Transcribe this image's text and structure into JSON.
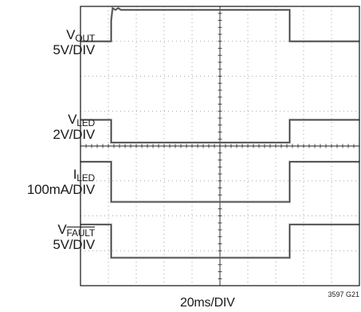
{
  "chart_data": {
    "type": "line",
    "title": "",
    "xlabel": "20ms/DIV",
    "figure_id": "3597 G21",
    "grid": true,
    "divisions": {
      "x": 10,
      "y": 8
    },
    "xlim": [
      0,
      10
    ],
    "ylim": [
      0,
      8
    ],
    "series": [
      {
        "name": "V_OUT",
        "scale": "5V/DIV",
        "x": [
          0,
          1.1,
          1.1,
          1.15,
          1.25,
          1.35,
          1.45,
          1.6,
          7.5,
          7.5,
          10
        ],
        "y": [
          7.0,
          7.0,
          7.6,
          7.95,
          7.9,
          7.95,
          7.9,
          7.9,
          7.9,
          7.0,
          7.0
        ]
      },
      {
        "name": "V_LED",
        "scale": "2V/DIV",
        "x": [
          0,
          1.1,
          1.1,
          7.5,
          7.5,
          10
        ],
        "y": [
          4.75,
          4.75,
          4.1,
          4.1,
          4.75,
          4.75
        ]
      },
      {
        "name": "I_LED",
        "scale": "100mA/DIV",
        "x": [
          0,
          1.1,
          1.1,
          7.5,
          7.5,
          10
        ],
        "y": [
          3.55,
          3.55,
          2.4,
          2.4,
          3.55,
          3.55
        ]
      },
      {
        "name": "V_FAULT",
        "scale": "5V/DIV",
        "x": [
          0,
          1.1,
          1.1,
          7.5,
          7.5,
          10
        ],
        "y": [
          1.75,
          1.75,
          0.8,
          0.8,
          1.75,
          1.75
        ]
      }
    ]
  },
  "labels": {
    "vout": {
      "main": "V",
      "sub": "OUT",
      "scale": "5V/DIV"
    },
    "vled": {
      "main": "V",
      "sub": "LED",
      "scale": "2V/DIV"
    },
    "iled": {
      "main": "I",
      "sub": "LED",
      "scale": "100mA/DIV"
    },
    "vfault": {
      "main": "V",
      "sub": "FAULT",
      "scale": "5V/DIV"
    }
  }
}
